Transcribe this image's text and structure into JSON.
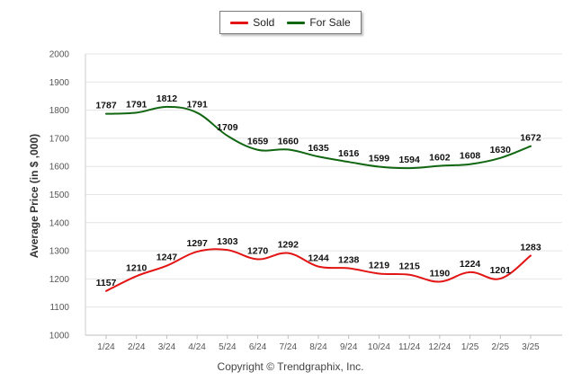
{
  "legend": [
    {
      "name": "Sold",
      "color": "#e31414"
    },
    {
      "name": "For Sale",
      "color": "#116611"
    }
  ],
  "footer": "Copyright © Trendgraphix, Inc.",
  "chart_data": {
    "type": "line",
    "ylabel": "Average Price (in $ ,000)",
    "xlabel": "",
    "ylim": [
      1000,
      2000
    ],
    "yticks": [
      1000,
      1100,
      1200,
      1300,
      1400,
      1500,
      1600,
      1700,
      1800,
      1900,
      2000
    ],
    "grid": true,
    "legend_position": "top-center",
    "categories": [
      "1/24",
      "2/24",
      "3/24",
      "4/24",
      "5/24",
      "6/24",
      "7/24",
      "8/24",
      "9/24",
      "10/24",
      "11/24",
      "12/24",
      "1/25",
      "2/25",
      "3/25"
    ],
    "series": [
      {
        "name": "Sold",
        "color": "#e31414",
        "values": [
          1157,
          1210,
          1247,
          1297,
          1303,
          1270,
          1292,
          1244,
          1238,
          1219,
          1215,
          1190,
          1224,
          1201,
          1283
        ]
      },
      {
        "name": "For Sale",
        "color": "#116611",
        "values": [
          1787,
          1791,
          1812,
          1791,
          1709,
          1659,
          1660,
          1635,
          1616,
          1599,
          1594,
          1602,
          1608,
          1630,
          1672
        ]
      }
    ]
  }
}
